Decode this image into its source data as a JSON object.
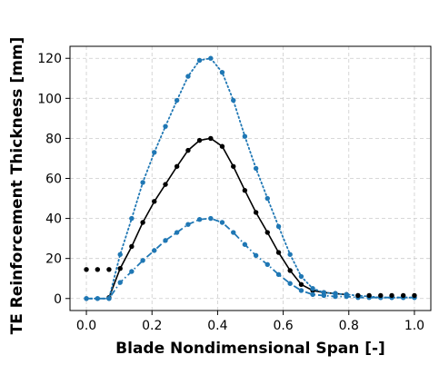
{
  "chart_data": {
    "type": "line",
    "title": "",
    "xlabel": "Blade Nondimensional Span [-]",
    "ylabel": "TE Reinforcement Thickness [mm]",
    "xlim": [
      -0.05,
      1.05
    ],
    "ylim": [
      -6,
      126
    ],
    "xticks": [
      0.0,
      0.2,
      0.4,
      0.6,
      0.8,
      1.0
    ],
    "xtick_labels": [
      "0.0",
      "0.2",
      "0.4",
      "0.6",
      "0.8",
      "1.0"
    ],
    "yticks": [
      0,
      20,
      40,
      60,
      80,
      100,
      120
    ],
    "ytick_labels": [
      "0",
      "20",
      "40",
      "60",
      "80",
      "100",
      "120"
    ],
    "grid": true,
    "legend": "none",
    "series": [
      {
        "line_style": "solid",
        "color": "#000000",
        "x": [
          0.069,
          0.103,
          0.138,
          0.172,
          0.207,
          0.241,
          0.276,
          0.31,
          0.345,
          0.379,
          0.414,
          0.448,
          0.483,
          0.517,
          0.552,
          0.586,
          0.621,
          0.655,
          0.69,
          0.724,
          0.759,
          0.793
        ],
        "y": [
          0.5,
          15,
          26,
          38,
          48.5,
          57,
          66,
          74,
          79,
          80,
          76,
          66,
          54,
          43,
          33,
          23,
          14,
          7,
          4,
          3,
          2.5,
          2
        ]
      },
      {
        "line_style": "dotted",
        "color": "#1f77b4",
        "x": [
          0.0,
          0.034,
          0.069,
          0.103,
          0.138,
          0.172,
          0.207,
          0.241,
          0.276,
          0.31,
          0.345,
          0.379,
          0.414,
          0.448,
          0.483,
          0.517,
          0.552,
          0.586,
          0.621,
          0.655,
          0.69,
          0.724,
          0.759,
          0.793,
          0.828,
          0.862,
          0.897,
          0.931,
          0.966,
          1.0
        ],
        "y": [
          0,
          0,
          0,
          22,
          40,
          58,
          73,
          86,
          99,
          111,
          119,
          120,
          113,
          99,
          81,
          65,
          50,
          36,
          22,
          11,
          5,
          3,
          2.5,
          2,
          1.5,
          1,
          0.5,
          0.5,
          0.5,
          0.5
        ]
      },
      {
        "line_style": "dashdot",
        "color": "#1f77b4",
        "x": [
          0.0,
          0.034,
          0.069,
          0.103,
          0.138,
          0.172,
          0.207,
          0.241,
          0.276,
          0.31,
          0.345,
          0.379,
          0.414,
          0.448,
          0.483,
          0.517,
          0.552,
          0.586,
          0.621,
          0.655,
          0.69,
          0.724,
          0.759,
          0.793,
          0.828,
          0.862,
          0.897,
          0.931,
          0.966,
          1.0
        ],
        "y": [
          0,
          0,
          0,
          8,
          13.5,
          19,
          24,
          29,
          33,
          37,
          39.5,
          40,
          38,
          33,
          27,
          21.5,
          17,
          12,
          7.5,
          4,
          2,
          1.5,
          1,
          1,
          0.5,
          0.5,
          0.5,
          0.5,
          0.5,
          0.5
        ]
      },
      {
        "line_style": "none",
        "color": "#000000",
        "x": [
          0.0,
          0.034,
          0.069,
          0.828,
          0.862,
          0.897,
          0.931,
          0.966,
          1.0
        ],
        "y": [
          14.5,
          14.5,
          14.5,
          1.5,
          1.5,
          1.5,
          1.5,
          1.5,
          1.5
        ]
      }
    ]
  }
}
